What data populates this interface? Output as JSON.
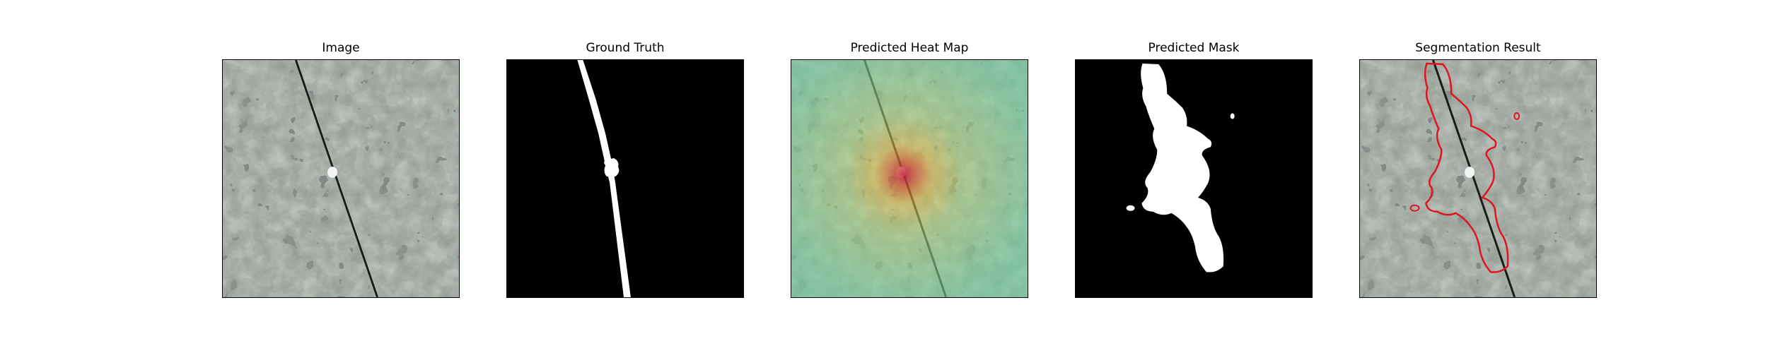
{
  "panels": [
    {
      "title": "Image"
    },
    {
      "title": "Ground Truth"
    },
    {
      "title": "Predicted Heat Map"
    },
    {
      "title": "Predicted Mask"
    },
    {
      "title": "Segmentation Result"
    }
  ],
  "colors": {
    "background": "#ffffff",
    "texture_base": "#8f9790",
    "texture_dark": "#2c2f2d",
    "mask_white": "#ffffff",
    "mask_black": "#000000",
    "heat_low": "#6fcf9f",
    "heat_mid": "#e0c040",
    "heat_high": "#c21a38",
    "contour": "#e0141e"
  }
}
